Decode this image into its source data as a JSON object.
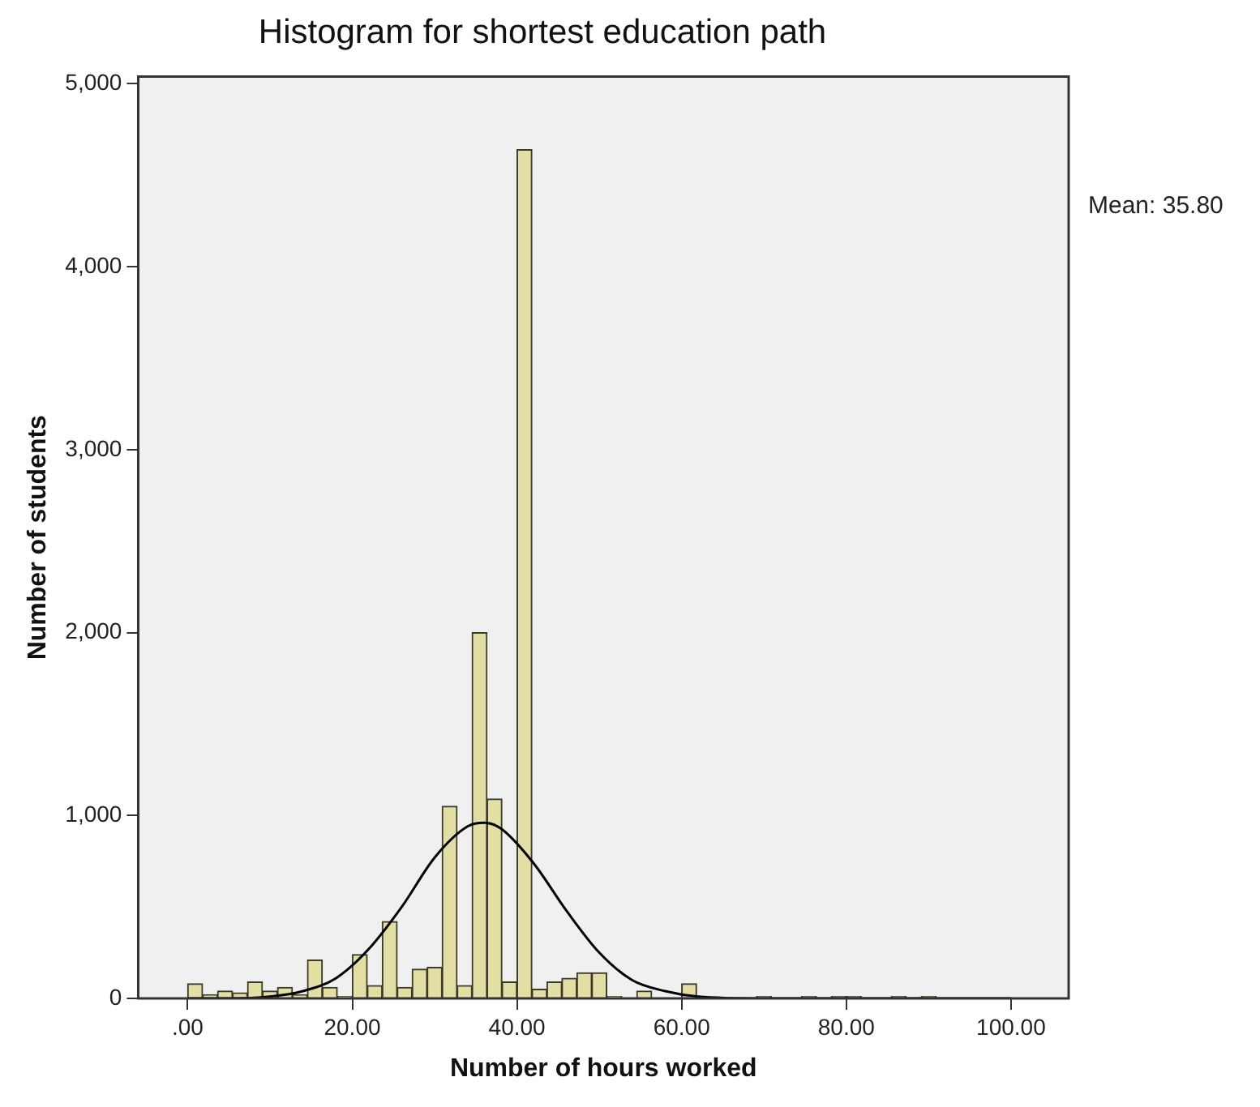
{
  "chart_data": {
    "type": "histogram",
    "title": "Histogram for shortest education path",
    "xlabel": "Number of hours worked",
    "ylabel": "Number of students",
    "bins": [
      0,
      1.82,
      3.64,
      5.45,
      7.27,
      9.09,
      10.91,
      12.73,
      14.55,
      16.36,
      18.18,
      20,
      21.82,
      23.64,
      25.45,
      27.27,
      29.09,
      30.91,
      32.73,
      34.55,
      36.36,
      38.18,
      40,
      41.82,
      43.64,
      45.45,
      47.27,
      49.09,
      50.91,
      52.73,
      54.55,
      56.36,
      58.18,
      60,
      61.82,
      63.64,
      65.45,
      67.27,
      69.09,
      70.91,
      72.73,
      74.55,
      76.36,
      78.18,
      80,
      81.82,
      83.64,
      85.45,
      87.27,
      89.09,
      90.91,
      92.73,
      94.55,
      96.36,
      98.18,
      100
    ],
    "values": [
      80,
      20,
      40,
      30,
      90,
      40,
      60,
      20,
      210,
      60,
      10,
      240,
      70,
      420,
      60,
      160,
      170,
      1050,
      70,
      2000,
      1090,
      90,
      4640,
      50,
      90,
      110,
      140,
      140,
      10,
      0,
      40,
      0,
      0,
      80,
      0,
      0,
      0,
      0,
      10,
      0,
      0,
      10,
      0,
      10,
      10,
      0,
      0,
      10,
      0,
      10,
      0,
      0,
      0,
      0,
      0
    ],
    "color": "#e3dea4",
    "series": [
      {
        "type": "line",
        "color": "#000000",
        "x": [
          0,
          5,
          10,
          14,
          18,
          22,
          26,
          30,
          34,
          36,
          38,
          42,
          46,
          50,
          54,
          58,
          62,
          70,
          80,
          100
        ],
        "values": [
          0,
          0,
          10,
          40,
          110,
          270,
          500,
          770,
          940,
          960,
          930,
          740,
          480,
          250,
          100,
          40,
          10,
          0,
          0,
          0
        ]
      }
    ],
    "marker": "none",
    "grid": false,
    "legend": false,
    "xlim": [
      -6,
      107
    ],
    "ylim": [
      0,
      5040
    ],
    "xticks": [
      {
        "value": 0,
        "label": ".00"
      },
      {
        "value": 20,
        "label": "20.00"
      },
      {
        "value": 40,
        "label": "40.00"
      },
      {
        "value": 60,
        "label": "60.00"
      },
      {
        "value": 80,
        "label": "80.00"
      },
      {
        "value": 100,
        "label": "100.00"
      }
    ],
    "yticks": [
      0,
      {
        "value": 1000,
        "label": "1,000"
      },
      {
        "value": 2000,
        "label": "2,000"
      },
      {
        "value": 3000,
        "label": "3,000"
      },
      {
        "value": 4000,
        "label": "4,000"
      },
      {
        "value": 5000,
        "label": "5,000"
      }
    ],
    "annotations": [
      "Mean: 35.80"
    ]
  }
}
